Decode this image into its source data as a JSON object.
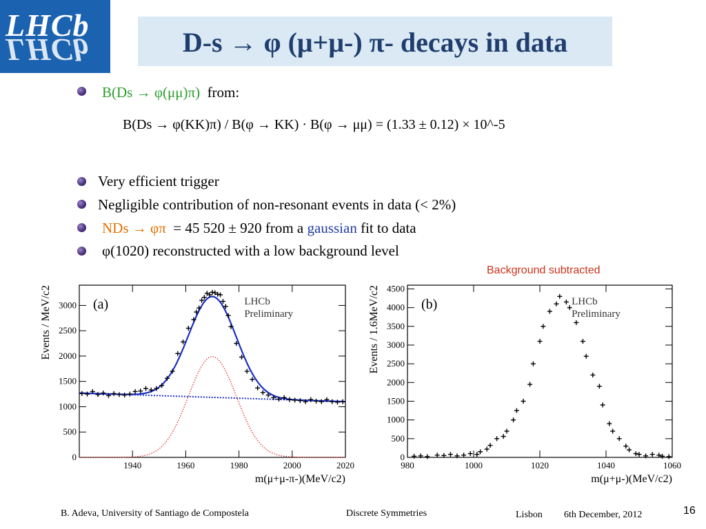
{
  "logo": {
    "text": "LHCb"
  },
  "slide_title": "D-s → φ (μ+μ-) π-  decays in data",
  "bullets": {
    "b1_prefix": "B(Ds → φ(μμ)π)",
    "b1_suffix": "from:",
    "formula": "B(Ds → φ(KK)π) / B(φ → KK) · B(φ → μμ) = (1.33 ± 0.12) × 10^-5",
    "b2": "Very efficient trigger",
    "b3": "Negligible contribution of non-resonant events in data   (< 2%)",
    "b4_n": "NDs → φπ",
    "b4_rest1": "= 45 520 ± 920 from a",
    "b4_gauss": "gaussian",
    "b4_rest2": "fit to data",
    "b5": "φ(1020) reconstructed with a low background level"
  },
  "background_subtracted": "Background subtracted",
  "footer": {
    "author": "B. Adeva, University of  Santiago de Compostela",
    "topic": "Discrete  Symmetries",
    "place": "Lisbon",
    "date": "6th December, 2012",
    "page": "16"
  },
  "colors": {
    "title_bg": "#dbe9f5",
    "title_text": "#1f3e6e",
    "logo_bg": "#1b63b0",
    "fit_total": "#1a2fc8",
    "fit_background": "#1a2fc8",
    "fit_signal": "#e03030"
  },
  "chart_data": [
    {
      "type": "scatter",
      "panel": "(a)",
      "label_lines": [
        "LHCb",
        "Preliminary"
      ],
      "xlabel": "m(μ+μ-π-)(MeV/c2)",
      "ylabel": "Events / MeV/c2",
      "xlim": [
        1920,
        2020
      ],
      "ylim": [
        0,
        3400
      ],
      "xticks": [
        1940,
        1960,
        1980,
        2000,
        2020
      ],
      "yticks": [
        0,
        500,
        1000,
        1500,
        2000,
        2500,
        3000
      ],
      "series": [
        {
          "style": "points",
          "x": [
            1921,
            1923,
            1925,
            1927,
            1929,
            1931,
            1933,
            1935,
            1937,
            1939,
            1941,
            1943,
            1945,
            1947,
            1949,
            1951,
            1953,
            1955,
            1957,
            1959,
            1961,
            1963,
            1964,
            1965,
            1966,
            1967,
            1968,
            1969,
            1970,
            1971,
            1972,
            1973,
            1974,
            1975,
            1976,
            1977,
            1979,
            1981,
            1983,
            1985,
            1987,
            1989,
            1991,
            1993,
            1995,
            1997,
            1999,
            2001,
            2003,
            2005,
            2007,
            2009,
            2011,
            2013,
            2015,
            2017,
            2019
          ],
          "y": [
            1260,
            1250,
            1300,
            1240,
            1270,
            1220,
            1260,
            1240,
            1230,
            1250,
            1300,
            1310,
            1360,
            1330,
            1360,
            1420,
            1560,
            1700,
            2050,
            2280,
            2550,
            2720,
            2870,
            2950,
            3100,
            3160,
            3240,
            3210,
            3260,
            3250,
            3220,
            3210,
            3080,
            2980,
            2800,
            2580,
            2250,
            1980,
            1700,
            1540,
            1370,
            1280,
            1230,
            1180,
            1150,
            1180,
            1140,
            1130,
            1120,
            1100,
            1140,
            1110,
            1100,
            1140,
            1100,
            1090,
            1100
          ]
        },
        {
          "name": "",
          "style": "total fit",
          "peak_x": 1970,
          "peak_y": 3210
        },
        {
          "name": "",
          "style": "background fit",
          "y_start": 1270,
          "y_end": 1100
        },
        {
          "name": "",
          "style": "signal fit",
          "peak_x": 1970,
          "peak_y": 1990
        }
      ]
    },
    {
      "type": "scatter",
      "panel": "(b)",
      "label_lines": [
        "LHCb",
        "Preliminary"
      ],
      "xlabel": "m(μ+μ-)(MeV/c2)",
      "ylabel": "Events / 1.6MeV/c2",
      "xlim": [
        980,
        1060
      ],
      "ylim": [
        0,
        4600
      ],
      "xticks": [
        980,
        1000,
        1020,
        1040,
        1060
      ],
      "yticks": [
        0,
        500,
        1000,
        1500,
        2000,
        2500,
        3000,
        3500,
        4000,
        4500
      ],
      "series": [
        {
          "style": "points",
          "x": [
            982,
            984,
            986,
            989,
            991,
            993,
            995,
            997,
            999,
            1001,
            1002,
            1004,
            1005,
            1007,
            1009,
            1010,
            1012,
            1013,
            1015,
            1017,
            1018,
            1020,
            1021,
            1023,
            1025,
            1026,
            1028,
            1029,
            1031,
            1033,
            1034,
            1036,
            1038,
            1039,
            1041,
            1042,
            1044,
            1046,
            1047,
            1049,
            1050,
            1052,
            1054,
            1056,
            1057,
            1059
          ],
          "y": [
            30,
            40,
            20,
            60,
            50,
            80,
            40,
            60,
            100,
            80,
            150,
            220,
            320,
            500,
            560,
            700,
            1000,
            1250,
            1500,
            1950,
            2500,
            3100,
            3500,
            3900,
            4100,
            4300,
            4150,
            4000,
            3600,
            3100,
            2700,
            2200,
            1900,
            1400,
            900,
            700,
            500,
            300,
            200,
            100,
            80,
            40,
            80,
            60,
            30,
            20
          ]
        }
      ]
    }
  ]
}
